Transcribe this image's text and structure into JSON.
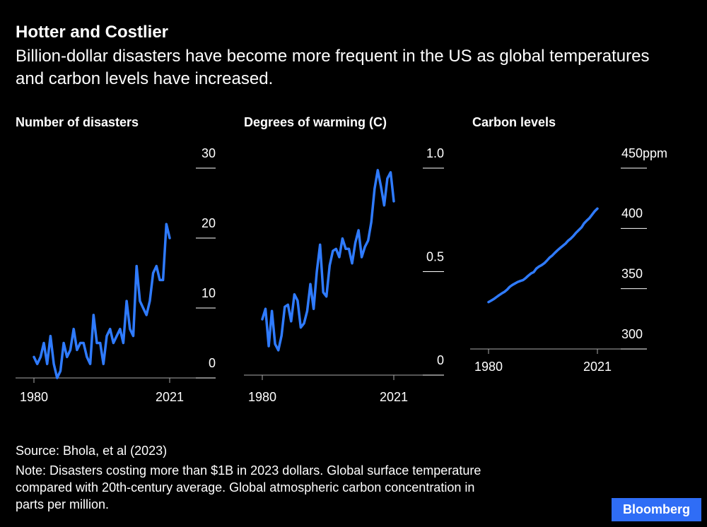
{
  "header": {
    "title": "Hotter and Costlier",
    "subtitle": "Billion-dollar disasters have become more frequent in the US as global temperatures and carbon levels have increased."
  },
  "footer": {
    "source": "Source: Bhola, et al (2023)",
    "note": "Note: Disasters costing more than $1B in 2023 dollars. Global surface temperature compared with 20th-century average. Global atmospheric carbon concentration in parts per million.",
    "logo": "Bloomberg"
  },
  "chart_data": [
    {
      "type": "line",
      "title": "Number of disasters",
      "color": "#2f7bff",
      "x": [
        1980,
        1981,
        1982,
        1983,
        1984,
        1985,
        1986,
        1987,
        1988,
        1989,
        1990,
        1991,
        1992,
        1993,
        1994,
        1995,
        1996,
        1997,
        1998,
        1999,
        2000,
        2001,
        2002,
        2003,
        2004,
        2005,
        2006,
        2007,
        2008,
        2009,
        2010,
        2011,
        2012,
        2013,
        2014,
        2015,
        2016,
        2017,
        2018,
        2019,
        2020,
        2021
      ],
      "values": [
        3,
        2,
        3,
        5,
        2,
        6,
        2,
        0,
        1,
        5,
        3,
        4,
        7,
        4,
        5,
        5,
        3,
        2,
        9,
        5,
        5,
        2,
        6,
        7,
        5,
        6,
        7,
        5,
        11,
        7,
        6,
        16,
        11,
        10,
        9,
        11,
        15,
        16,
        14,
        14,
        22,
        20
      ],
      "xlim": [
        1980,
        2021
      ],
      "xticks": [
        1980,
        2021
      ],
      "ylim": [
        0,
        30
      ],
      "yticks": [
        0,
        10,
        20,
        30
      ]
    },
    {
      "type": "line",
      "title": "Degrees of warming (C)",
      "color": "#2f7bff",
      "x": [
        1980,
        1981,
        1982,
        1983,
        1984,
        1985,
        1986,
        1987,
        1988,
        1989,
        1990,
        1991,
        1992,
        1993,
        1994,
        1995,
        1996,
        1997,
        1998,
        1999,
        2000,
        2001,
        2002,
        2003,
        2004,
        2005,
        2006,
        2007,
        2008,
        2009,
        2010,
        2011,
        2012,
        2013,
        2014,
        2015,
        2016,
        2017,
        2018,
        2019,
        2020,
        2021
      ],
      "values": [
        0.27,
        0.32,
        0.14,
        0.31,
        0.15,
        0.12,
        0.19,
        0.33,
        0.34,
        0.26,
        0.39,
        0.36,
        0.23,
        0.25,
        0.31,
        0.44,
        0.32,
        0.5,
        0.63,
        0.4,
        0.38,
        0.53,
        0.6,
        0.61,
        0.57,
        0.66,
        0.61,
        0.61,
        0.54,
        0.64,
        0.7,
        0.57,
        0.62,
        0.65,
        0.74,
        0.9,
        0.99,
        0.91,
        0.82,
        0.95,
        0.98,
        0.84
      ],
      "xlim": [
        1980,
        2021
      ],
      "xticks": [
        1980,
        2021
      ],
      "ylim": [
        0,
        1
      ],
      "yticks": [
        0,
        0.5,
        {
          "value": 1,
          "label": "1.0"
        }
      ]
    },
    {
      "type": "line",
      "title": "Carbon levels",
      "color": "#2f7bff",
      "x": [
        1980,
        1981,
        1982,
        1983,
        1984,
        1985,
        1986,
        1987,
        1988,
        1989,
        1990,
        1991,
        1992,
        1993,
        1994,
        1995,
        1996,
        1997,
        1998,
        1999,
        2000,
        2001,
        2002,
        2003,
        2004,
        2005,
        2006,
        2007,
        2008,
        2009,
        2010,
        2011,
        2012,
        2013,
        2014,
        2015,
        2016,
        2017,
        2018,
        2019,
        2020,
        2021
      ],
      "values": [
        338.91,
        340.11,
        341.45,
        343.05,
        344.65,
        346.12,
        347.42,
        349.19,
        351.57,
        353.12,
        354.39,
        355.61,
        356.45,
        357.1,
        358.83,
        360.82,
        362.61,
        363.73,
        366.7,
        368.38,
        369.55,
        371.14,
        373.28,
        375.8,
        377.52,
        379.8,
        381.9,
        383.79,
        385.6,
        387.43,
        389.9,
        391.65,
        393.85,
        396.52,
        398.65,
        400.83,
        404.24,
        406.55,
        408.52,
        411.44,
        414.24,
        416.45
      ],
      "xlim": [
        1980,
        2021
      ],
      "xticks": [
        1980,
        2021
      ],
      "ylim": [
        300,
        450
      ],
      "yticks": [
        300,
        350,
        400,
        {
          "value": 450,
          "label": "450ppm"
        }
      ]
    }
  ]
}
